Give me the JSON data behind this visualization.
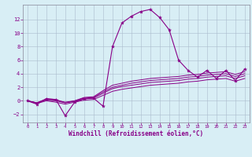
{
  "xlabel": "Windchill (Refroidissement éolien,°C)",
  "background_color": "#d8eef5",
  "line_color": "#880088",
  "grid_color": "#aabbcc",
  "xlim": [
    -0.5,
    23.5
  ],
  "ylim": [
    -3.2,
    14.2
  ],
  "xticks": [
    0,
    1,
    2,
    3,
    4,
    5,
    6,
    7,
    8,
    9,
    10,
    11,
    12,
    13,
    14,
    15,
    16,
    17,
    18,
    19,
    20,
    21,
    22,
    23
  ],
  "yticks": [
    -2,
    0,
    2,
    4,
    6,
    8,
    10,
    12
  ],
  "series": [
    [
      0,
      -0.5,
      0.3,
      0.2,
      -2.2,
      -0.2,
      0.3,
      0.4,
      -0.8,
      8.0,
      11.5,
      12.5,
      13.2,
      13.5,
      12.3,
      10.5,
      6.0,
      4.5,
      3.5,
      4.5,
      3.3,
      4.5,
      3.0,
      4.7
    ],
    [
      0,
      -0.3,
      0.3,
      0.2,
      -0.3,
      0.0,
      0.5,
      0.6,
      1.5,
      2.3,
      2.6,
      2.9,
      3.1,
      3.3,
      3.4,
      3.5,
      3.6,
      3.8,
      3.9,
      4.1,
      4.2,
      4.3,
      3.9,
      4.3
    ],
    [
      0,
      -0.3,
      0.2,
      0.1,
      -0.2,
      0.0,
      0.4,
      0.5,
      1.3,
      2.0,
      2.3,
      2.6,
      2.8,
      3.0,
      3.1,
      3.2,
      3.3,
      3.5,
      3.6,
      3.8,
      3.9,
      4.0,
      3.6,
      4.0
    ],
    [
      0,
      -0.3,
      0.1,
      0.0,
      -0.3,
      -0.1,
      0.3,
      0.4,
      1.1,
      1.8,
      2.1,
      2.3,
      2.5,
      2.7,
      2.8,
      2.9,
      3.0,
      3.2,
      3.3,
      3.5,
      3.6,
      3.7,
      3.3,
      3.7
    ],
    [
      0,
      -0.4,
      0.0,
      -0.2,
      -0.5,
      -0.2,
      0.1,
      0.2,
      0.8,
      1.4,
      1.7,
      1.9,
      2.1,
      2.3,
      2.4,
      2.5,
      2.6,
      2.8,
      2.9,
      3.1,
      3.2,
      3.3,
      2.9,
      3.3
    ]
  ]
}
